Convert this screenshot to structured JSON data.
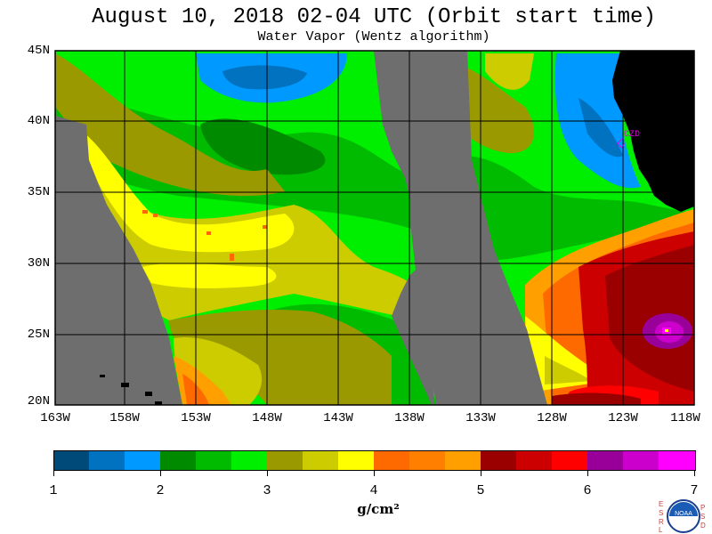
{
  "header": {
    "title": "August 10, 2018  02-04 UTC  (Orbit start time)",
    "subtitle": "Water Vapor (Wentz algorithm)"
  },
  "map": {
    "lat_labels": [
      "45N",
      "40N",
      "35N",
      "30N",
      "25N",
      "20N"
    ],
    "lon_labels": [
      "163W",
      "158W",
      "153W",
      "148W",
      "143W",
      "138W",
      "133W",
      "128W",
      "123W",
      "118W"
    ],
    "station_label": "CZD",
    "colors": {
      "no_data": "#6e6e6e",
      "land": "#000000",
      "grid": "#000000",
      "station": "#e000e0"
    }
  },
  "colorbar": {
    "tick_labels": [
      "1",
      "2",
      "3",
      "4",
      "5",
      "6",
      "7"
    ],
    "unit": "g/cm²",
    "colors": [
      "#004a7a",
      "#0072c0",
      "#0099ff",
      "#008a00",
      "#00bb00",
      "#00ee00",
      "#9a9a00",
      "#cccc00",
      "#ffff00",
      "#ff6a00",
      "#ff7f00",
      "#ff9f00",
      "#9a0000",
      "#cc0000",
      "#ff0000",
      "#990099",
      "#cc00cc",
      "#ff00ff"
    ]
  },
  "logo": {
    "left_letters": [
      "E",
      "S",
      "R",
      "L"
    ],
    "right_letters": [
      "P",
      "S",
      "D"
    ],
    "emblem_text": "NOAA"
  }
}
